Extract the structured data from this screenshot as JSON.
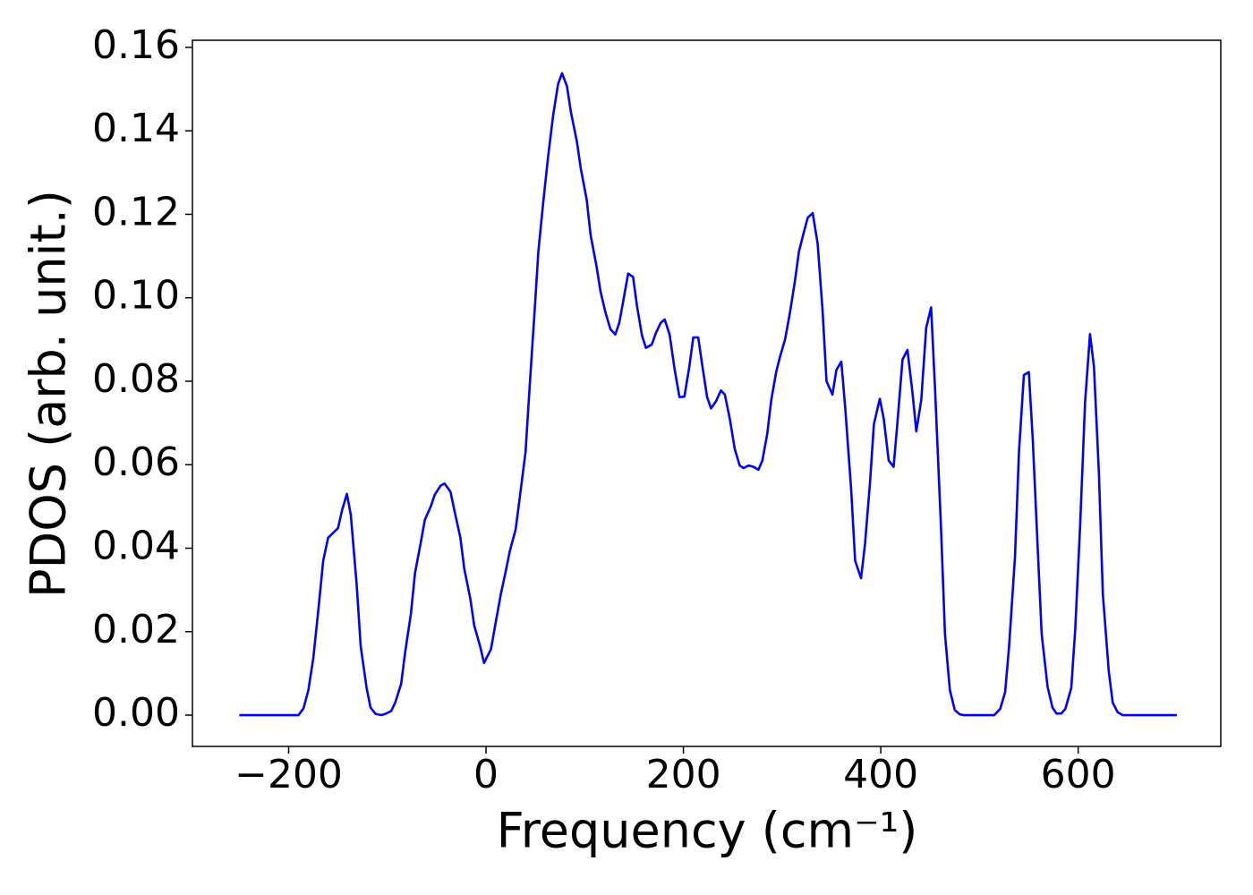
{
  "chart_data": {
    "type": "line",
    "xlabel": "Frequency (cm⁻¹)",
    "ylabel": "PDOS (arb. unit.)",
    "color": "#0000ff",
    "x": [
      -250,
      -190,
      -185,
      -180,
      -175,
      -170,
      -165,
      -160,
      -150,
      -146,
      -141,
      -137,
      -131,
      -127,
      -121,
      -117,
      -112,
      -106,
      -102,
      -96,
      -92,
      -86,
      -82,
      -76,
      -72,
      -66,
      -62,
      -56,
      -52,
      -46,
      -42,
      -36,
      -32,
      -26,
      -22,
      -16,
      -12,
      -6,
      -2,
      5,
      10,
      15,
      20,
      24,
      30,
      34,
      40,
      44,
      49,
      53,
      58,
      63,
      68,
      73,
      77,
      82,
      86,
      92,
      96,
      102,
      106,
      112,
      116,
      121,
      126,
      131,
      135,
      140,
      144,
      149,
      153,
      158,
      162,
      168,
      172,
      177,
      181,
      186,
      191,
      196,
      201,
      206,
      210,
      215,
      219,
      224,
      228,
      233,
      238,
      242,
      247,
      252,
      257,
      261,
      266,
      271,
      276,
      280,
      285,
      289,
      294,
      298,
      303,
      308,
      313,
      317,
      322,
      326,
      331,
      336,
      341,
      345,
      351,
      355,
      360,
      364,
      370,
      374,
      380,
      384,
      389,
      393,
      399,
      403,
      408,
      413,
      417,
      422,
      427,
      432,
      436,
      441,
      446,
      451,
      455,
      461,
      465,
      470,
      475,
      480,
      484,
      515,
      521,
      526,
      530,
      536,
      540,
      545,
      550,
      554,
      559,
      563,
      569,
      574,
      578,
      583,
      587,
      593,
      597,
      602,
      607,
      612,
      616,
      621,
      625,
      631,
      635,
      640,
      645,
      700
    ],
    "values": [
      0,
      0,
      0.0016,
      0.006,
      0.0137,
      0.025,
      0.037,
      0.0425,
      0.0448,
      0.049,
      0.053,
      0.048,
      0.031,
      0.0165,
      0.0065,
      0.0018,
      0.0003,
      0,
      0.0003,
      0.001,
      0.003,
      0.0075,
      0.015,
      0.0245,
      0.034,
      0.0415,
      0.0468,
      0.05,
      0.0528,
      0.055,
      0.0555,
      0.0535,
      0.049,
      0.0425,
      0.035,
      0.028,
      0.0215,
      0.0165,
      0.0125,
      0.0158,
      0.0225,
      0.029,
      0.0345,
      0.0392,
      0.0445,
      0.0518,
      0.063,
      0.078,
      0.096,
      0.111,
      0.123,
      0.134,
      0.1437,
      0.1512,
      0.1538,
      0.1507,
      0.1445,
      0.1375,
      0.131,
      0.1235,
      0.115,
      0.1075,
      0.1015,
      0.0965,
      0.0925,
      0.0912,
      0.094,
      0.1005,
      0.1058,
      0.105,
      0.098,
      0.091,
      0.088,
      0.0888,
      0.0915,
      0.094,
      0.0948,
      0.0912,
      0.083,
      0.0762,
      0.0763,
      0.0835,
      0.0905,
      0.0905,
      0.084,
      0.0762,
      0.0735,
      0.0752,
      0.0778,
      0.0768,
      0.071,
      0.0638,
      0.0598,
      0.0592,
      0.0598,
      0.0595,
      0.0588,
      0.061,
      0.0675,
      0.0755,
      0.0822,
      0.086,
      0.09,
      0.0965,
      0.104,
      0.111,
      0.1157,
      0.1192,
      0.1203,
      0.113,
      0.097,
      0.08,
      0.0768,
      0.0827,
      0.0847,
      0.0735,
      0.054,
      0.037,
      0.0328,
      0.041,
      0.0555,
      0.0697,
      0.0758,
      0.071,
      0.061,
      0.0595,
      0.0705,
      0.0852,
      0.0875,
      0.0775,
      0.068,
      0.0755,
      0.0928,
      0.0977,
      0.078,
      0.045,
      0.0195,
      0.006,
      0.0012,
      0.0002,
      0,
      0,
      0.0015,
      0.0055,
      0.0165,
      0.038,
      0.063,
      0.0815,
      0.0822,
      0.066,
      0.04,
      0.0195,
      0.0068,
      0.0018,
      0.0004,
      0.0004,
      0.0015,
      0.0065,
      0.0205,
      0.0455,
      0.075,
      0.0913,
      0.0835,
      0.058,
      0.029,
      0.0105,
      0.003,
      0.0007,
      0,
      0
    ],
    "xlim": [
      -297.5,
      744.5
    ],
    "ylim": [
      -0.0075,
      0.1617
    ],
    "xticks": [
      {
        "value": -200,
        "label": "−200"
      },
      0,
      200,
      400,
      600
    ],
    "yticks": [
      {
        "value": 0,
        "label": "0.00"
      },
      {
        "value": 0.02,
        "label": "0.02"
      },
      {
        "value": 0.04,
        "label": "0.04"
      },
      {
        "value": 0.06,
        "label": "0.06"
      },
      {
        "value": 0.08,
        "label": "0.08"
      },
      {
        "value": 0.1,
        "label": "0.10"
      },
      {
        "value": 0.12,
        "label": "0.12"
      },
      {
        "value": 0.14,
        "label": "0.14"
      },
      {
        "value": 0.16,
        "label": "0.16"
      }
    ],
    "grid": false
  }
}
